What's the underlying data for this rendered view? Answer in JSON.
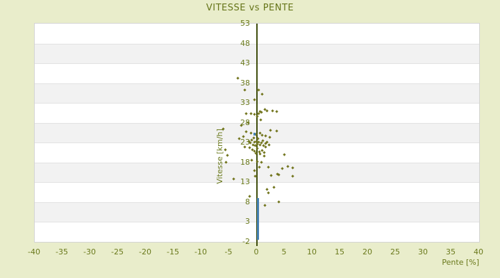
{
  "title": "VITESSE vs PENTE",
  "colors": {
    "background": "#e9edcb",
    "text_olive": "#6a791c",
    "axis_line": "#3f4d0c",
    "band_white": "#ffffff",
    "band_grey": "#f2f2f2",
    "series_moving": "#73761f",
    "series_stopped": "#4682b4"
  },
  "chart_data": {
    "type": "scatter",
    "title": "VITESSE vs PENTE",
    "xlabel": "Pente [%]",
    "ylabel": "Vitesse [km/h]",
    "xlim": [
      -40,
      40
    ],
    "ylim": [
      -2,
      53
    ],
    "x_ticks": [
      -40,
      -35,
      -30,
      -25,
      -20,
      -15,
      -10,
      -5,
      0,
      5,
      10,
      15,
      20,
      25,
      30,
      35,
      40
    ],
    "y_ticks": [
      -2,
      3,
      8,
      13,
      18,
      23,
      28,
      33,
      38,
      43,
      48,
      53
    ],
    "grid": "horizontal alternating white/grey bands, y-axis line drawn at x=0",
    "legend": "none",
    "series": [
      {
        "name": "points-olive",
        "marker": "diamond",
        "color": "#73761f",
        "points": [
          [
            -3.4,
            39.1
          ],
          [
            -2.2,
            36.2
          ],
          [
            0.3,
            36.2
          ],
          [
            0.9,
            35.1
          ],
          [
            -0.5,
            33.7
          ],
          [
            1.4,
            31.3
          ],
          [
            1.8,
            31.0
          ],
          [
            2.8,
            31.0
          ],
          [
            3.5,
            30.8
          ],
          [
            -2.0,
            30.2
          ],
          [
            -1.1,
            30.2
          ],
          [
            -0.4,
            30.0
          ],
          [
            0.3,
            30.3
          ],
          [
            0.5,
            30.8
          ],
          [
            0.8,
            30.6
          ],
          [
            0.0,
            29.5
          ],
          [
            0.7,
            28.7
          ],
          [
            -2.8,
            27.3
          ],
          [
            -1.6,
            27.9
          ],
          [
            -6.1,
            26.4
          ],
          [
            2.4,
            26.1
          ],
          [
            3.5,
            25.9
          ],
          [
            -1.9,
            25.6
          ],
          [
            -1.1,
            25.3
          ],
          [
            -0.2,
            25.0
          ],
          [
            0.5,
            25.4
          ],
          [
            0.9,
            24.8
          ],
          [
            1.5,
            24.6
          ],
          [
            -2.5,
            24.4
          ],
          [
            -0.6,
            24.1
          ],
          [
            0.2,
            23.9
          ],
          [
            2.3,
            24.2
          ],
          [
            -3.2,
            24.0
          ],
          [
            -1.5,
            23.2
          ],
          [
            -1.2,
            22.8
          ],
          [
            -0.9,
            23.5
          ],
          [
            -0.7,
            22.4
          ],
          [
            -0.5,
            23.0
          ],
          [
            -0.3,
            22.1
          ],
          [
            -0.1,
            23.3
          ],
          [
            0.1,
            22.6
          ],
          [
            0.3,
            23.1
          ],
          [
            0.5,
            22.3
          ],
          [
            0.8,
            22.9
          ],
          [
            1.0,
            23.4
          ],
          [
            1.2,
            22.2
          ],
          [
            1.5,
            22.7
          ],
          [
            1.8,
            23.0
          ],
          [
            -1.3,
            21.6
          ],
          [
            -0.8,
            21.2
          ],
          [
            -0.4,
            20.8
          ],
          [
            0.0,
            21.4
          ],
          [
            0.4,
            20.6
          ],
          [
            0.9,
            21.0
          ],
          [
            1.3,
            20.4
          ],
          [
            -0.2,
            20.2
          ],
          [
            0.6,
            20.0
          ],
          [
            1.6,
            21.8
          ],
          [
            2.2,
            22.4
          ],
          [
            -2.2,
            21.9
          ],
          [
            -5.7,
            21.1
          ],
          [
            -5.3,
            19.8
          ],
          [
            -5.6,
            18.0
          ],
          [
            4.9,
            19.9
          ],
          [
            -0.9,
            18.5
          ],
          [
            0.1,
            18.2
          ],
          [
            0.75,
            17.9
          ],
          [
            1.3,
            19.5
          ],
          [
            0.4,
            16.7
          ],
          [
            -0.5,
            15.9
          ],
          [
            -0.3,
            14.4
          ],
          [
            2.0,
            16.7
          ],
          [
            2.6,
            14.7
          ],
          [
            3.7,
            15.0
          ],
          [
            4.5,
            16.4
          ],
          [
            5.5,
            17.0
          ],
          [
            6.4,
            16.5
          ],
          [
            6.4,
            14.4
          ],
          [
            3.9,
            14.8
          ],
          [
            -4.2,
            13.7
          ],
          [
            1.8,
            11.2
          ],
          [
            2.0,
            10.3
          ],
          [
            3.0,
            11.6
          ],
          [
            -1.3,
            9.4
          ],
          [
            1.4,
            7.1
          ],
          [
            3.9,
            7.9
          ]
        ]
      },
      {
        "name": "points-blue",
        "marker": "square",
        "color": "#4682b4",
        "points": [
          [
            -0.5,
            25.2
          ],
          [
            0.2,
            8.6
          ],
          [
            0.2,
            8.3
          ],
          [
            0.2,
            8.0
          ],
          [
            0.2,
            7.7
          ],
          [
            0.2,
            7.4
          ],
          [
            0.2,
            7.1
          ],
          [
            0.2,
            6.9
          ],
          [
            0.2,
            6.7
          ],
          [
            0.2,
            6.5
          ],
          [
            0.2,
            6.3
          ],
          [
            0.2,
            6.1
          ],
          [
            0.2,
            5.9
          ],
          [
            0.2,
            5.7
          ],
          [
            0.2,
            5.5
          ],
          [
            0.2,
            5.3
          ],
          [
            0.2,
            5.1
          ],
          [
            0.2,
            4.9
          ],
          [
            0.2,
            4.7
          ],
          [
            0.2,
            4.5
          ],
          [
            0.2,
            4.3
          ],
          [
            0.2,
            4.1
          ],
          [
            0.2,
            3.9
          ],
          [
            0.2,
            3.7
          ],
          [
            0.2,
            3.5
          ],
          [
            0.2,
            3.3
          ],
          [
            0.2,
            3.1
          ],
          [
            0.2,
            2.9
          ],
          [
            0.2,
            2.7
          ],
          [
            0.2,
            2.5
          ],
          [
            0.2,
            2.3
          ],
          [
            0.2,
            2.1
          ],
          [
            0.2,
            1.9
          ],
          [
            0.2,
            1.7
          ],
          [
            0.2,
            1.5
          ],
          [
            0.2,
            1.3
          ],
          [
            0.2,
            1.1
          ],
          [
            0.2,
            0.9
          ],
          [
            0.2,
            0.7
          ],
          [
            0.2,
            0.5
          ],
          [
            0.2,
            0.3
          ],
          [
            0.2,
            0.1
          ],
          [
            0.2,
            -0.2
          ],
          [
            0.2,
            -0.5
          ],
          [
            0.2,
            -0.8
          ],
          [
            0.2,
            -1.1
          ]
        ]
      }
    ]
  }
}
